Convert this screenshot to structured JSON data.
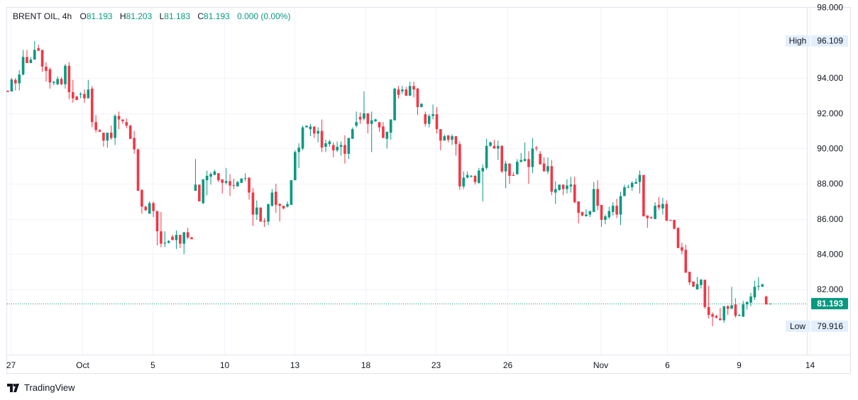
{
  "legend": {
    "symbol": "BRENT OIL, 4h",
    "o_label": "O",
    "o": "81.193",
    "h_label": "H",
    "h": "81.203",
    "l_label": "L",
    "l": "81.183",
    "c_label": "C",
    "c": "81.193",
    "change": "0.000 (0.00%)"
  },
  "logo": {
    "text": "TradingView"
  },
  "colors": {
    "up": "#089981",
    "down": "#f23645",
    "grid": "#f0f3fa",
    "badge": "#e3effd"
  },
  "chart_data": {
    "type": "candlestick",
    "title": "BRENT OIL, 4h",
    "ylim": [
      78.3,
      98.03
    ],
    "y_ticks": [
      "98.000",
      "94.000",
      "92.000",
      "90.000",
      "88.000",
      "86.000",
      "84.000",
      "82.000"
    ],
    "y_tick_values": [
      98,
      94,
      92,
      90,
      88,
      86,
      84,
      82
    ],
    "x_ticks": [
      {
        "label": "27",
        "index": 0.8
      },
      {
        "label": "Oct",
        "index": 19.4
      },
      {
        "label": "5",
        "index": 37.8
      },
      {
        "label": "10",
        "index": 56.5
      },
      {
        "label": "13",
        "index": 74.9
      },
      {
        "label": "18",
        "index": 93.3
      },
      {
        "label": "23",
        "index": 111.8
      },
      {
        "label": "26",
        "index": 130.4
      },
      {
        "label": "Nov",
        "index": 154.7
      },
      {
        "label": "6",
        "index": 172.2
      },
      {
        "label": "9",
        "index": 190.8
      },
      {
        "label": "14",
        "index": 209.3
      }
    ],
    "high": {
      "label": "High",
      "value": 96.109,
      "text": "96.109"
    },
    "low": {
      "label": "Low",
      "value": 79.916,
      "text": "79.916"
    },
    "last": {
      "value": 81.193,
      "text": "81.193"
    },
    "ohlc": [
      [
        93.28,
        93.3,
        93.2,
        93.22
      ],
      [
        93.24,
        94.0,
        93.24,
        93.92
      ],
      [
        93.9,
        94.0,
        93.3,
        93.7
      ],
      [
        93.7,
        94.45,
        93.3,
        94.2
      ],
      [
        94.2,
        95.6,
        94.15,
        95.2
      ],
      [
        95.2,
        95.6,
        94.85,
        94.85
      ],
      [
        94.85,
        95.2,
        94.85,
        95.05
      ],
      [
        95.05,
        96.109,
        95.05,
        95.6
      ],
      [
        95.7,
        95.9,
        95.55,
        95.55
      ],
      [
        95.6,
        95.6,
        94.35,
        94.65
      ],
      [
        94.65,
        94.9,
        93.8,
        94.4
      ],
      [
        94.5,
        94.6,
        93.4,
        93.75
      ],
      [
        93.72,
        93.85,
        93.6,
        93.78
      ],
      [
        93.65,
        94.1,
        93.6,
        93.95
      ],
      [
        93.95,
        94.05,
        93.6,
        93.65
      ],
      [
        93.65,
        94.8,
        93.4,
        94.7
      ],
      [
        94.7,
        94.9,
        92.8,
        93.2
      ],
      [
        93.2,
        93.9,
        92.6,
        92.85
      ],
      [
        92.95,
        93.0,
        92.75,
        92.75
      ],
      [
        93.05,
        93.2,
        92.85,
        93.1
      ],
      [
        93.1,
        93.35,
        92.6,
        92.85
      ],
      [
        92.85,
        93.9,
        92.85,
        93.35
      ],
      [
        93.4,
        93.55,
        91.2,
        91.5
      ],
      [
        91.5,
        91.9,
        90.9,
        91.05
      ],
      [
        91.05,
        91.1,
        90.95,
        90.95
      ],
      [
        90.9,
        90.9,
        90.1,
        90.45
      ],
      [
        90.45,
        90.9,
        90.05,
        90.9
      ],
      [
        90.9,
        91.3,
        90.5,
        90.6
      ],
      [
        90.6,
        91.95,
        90.2,
        91.85
      ],
      [
        91.85,
        92.1,
        91.1,
        91.65
      ],
      [
        91.65,
        91.65,
        91.4,
        91.55
      ],
      [
        91.5,
        91.7,
        91.15,
        91.3
      ],
      [
        91.3,
        91.35,
        90.55,
        90.55
      ],
      [
        90.6,
        91.0,
        89.7,
        89.95
      ],
      [
        89.95,
        90.0,
        87.6,
        87.6
      ],
      [
        87.65,
        87.7,
        86.3,
        86.7
      ],
      [
        86.7,
        86.75,
        86.45,
        86.5
      ],
      [
        86.3,
        87.0,
        86.3,
        86.9
      ],
      [
        86.9,
        87.0,
        86.1,
        86.45
      ],
      [
        86.45,
        86.45,
        84.5,
        85.3
      ],
      [
        85.3,
        86.4,
        84.4,
        84.6
      ],
      [
        84.6,
        85.3,
        84.4,
        84.65
      ],
      [
        84.65,
        84.8,
        84.6,
        84.75
      ],
      [
        85.0,
        85.1,
        84.8,
        84.8
      ],
      [
        84.8,
        85.35,
        84.3,
        85.1
      ],
      [
        85.1,
        85.1,
        84.35,
        84.6
      ],
      [
        84.6,
        85.25,
        84.0,
        85.25
      ],
      [
        85.25,
        85.5,
        84.85,
        84.95
      ],
      [
        84.95,
        85.0,
        84.85,
        84.85
      ],
      [
        87.6,
        89.4,
        87.6,
        87.95
      ],
      [
        87.95,
        87.95,
        87.0,
        87.0
      ],
      [
        86.9,
        88.25,
        86.85,
        88.25
      ],
      [
        88.2,
        88.75,
        87.35,
        88.45
      ],
      [
        88.4,
        88.65,
        87.95,
        88.55
      ],
      [
        88.5,
        88.8,
        88.5,
        88.7
      ],
      [
        88.6,
        88.6,
        88.1,
        88.2
      ],
      [
        88.25,
        88.25,
        87.45,
        88.05
      ],
      [
        88.05,
        88.9,
        87.95,
        88.15
      ],
      [
        88.15,
        88.55,
        87.3,
        87.9
      ],
      [
        87.92,
        88.3,
        87.7,
        87.88
      ],
      [
        87.85,
        88.15,
        87.85,
        88.1
      ],
      [
        88.05,
        88.3,
        88.05,
        88.3
      ],
      [
        88.28,
        88.6,
        88.15,
        88.32
      ],
      [
        88.35,
        88.35,
        87.1,
        87.5
      ],
      [
        87.5,
        87.75,
        85.6,
        86.25
      ],
      [
        86.25,
        87.05,
        85.95,
        86.65
      ],
      [
        86.65,
        86.65,
        85.85,
        85.85
      ],
      [
        85.9,
        86.05,
        85.55,
        85.85
      ],
      [
        85.85,
        86.85,
        85.65,
        86.85
      ],
      [
        86.75,
        87.7,
        86.7,
        87.5
      ],
      [
        87.55,
        88.0,
        86.35,
        86.8
      ],
      [
        86.85,
        86.9,
        85.85,
        86.75
      ],
      [
        86.75,
        86.75,
        86.55,
        86.6
      ],
      [
        86.7,
        87.0,
        86.65,
        86.85
      ],
      [
        86.8,
        88.2,
        86.8,
        88.2
      ],
      [
        88.2,
        89.9,
        88.2,
        89.8
      ],
      [
        89.8,
        90.3,
        88.9,
        90.05
      ],
      [
        90.0,
        91.3,
        89.9,
        91.2
      ],
      [
        91.2,
        91.3,
        91.2,
        91.3
      ],
      [
        91.1,
        91.4,
        90.7,
        91.25
      ],
      [
        91.25,
        91.25,
        90.6,
        90.85
      ],
      [
        90.85,
        91.2,
        90.35,
        91.0
      ],
      [
        91.0,
        91.65,
        89.8,
        90.05
      ],
      [
        90.1,
        90.5,
        89.8,
        90.3
      ],
      [
        90.25,
        90.5,
        90.1,
        90.4
      ],
      [
        90.2,
        90.35,
        89.5,
        89.9
      ],
      [
        89.9,
        90.4,
        89.8,
        90.1
      ],
      [
        90.1,
        90.4,
        89.6,
        90.2
      ],
      [
        90.2,
        90.75,
        89.15,
        89.7
      ],
      [
        89.7,
        90.6,
        89.4,
        90.6
      ],
      [
        90.55,
        91.2,
        90.55,
        91.1
      ],
      [
        91.3,
        92.1,
        91.2,
        91.5
      ],
      [
        91.8,
        92.05,
        91.4,
        91.65
      ],
      [
        91.7,
        93.25,
        91.6,
        92.0
      ],
      [
        92.0,
        92.0,
        90.85,
        91.4
      ],
      [
        91.4,
        92.1,
        89.8,
        91.6
      ],
      [
        91.55,
        91.7,
        91.5,
        91.65
      ],
      [
        91.5,
        91.5,
        90.95,
        91.2
      ],
      [
        91.25,
        91.5,
        90.6,
        90.6
      ],
      [
        90.55,
        90.95,
        90.0,
        90.95
      ],
      [
        90.9,
        91.65,
        90.5,
        91.65
      ],
      [
        91.6,
        93.45,
        91.6,
        93.4
      ],
      [
        93.35,
        93.55,
        92.85,
        93.05
      ],
      [
        93.25,
        93.55,
        93.1,
        93.35
      ],
      [
        93.35,
        93.5,
        93.0,
        93.0
      ],
      [
        93.0,
        93.8,
        93.0,
        93.55
      ],
      [
        93.55,
        93.8,
        92.9,
        93.35
      ],
      [
        93.4,
        93.45,
        91.9,
        92.35
      ],
      [
        92.35,
        92.55,
        92.35,
        92.55
      ],
      [
        91.95,
        92.1,
        91.25,
        91.4
      ],
      [
        91.4,
        91.95,
        91.2,
        91.85
      ],
      [
        91.85,
        92.5,
        91.65,
        91.95
      ],
      [
        91.95,
        92.35,
        90.85,
        91.1
      ],
      [
        91.1,
        91.1,
        89.9,
        90.45
      ],
      [
        90.45,
        90.8,
        90.45,
        90.7
      ],
      [
        90.75,
        90.75,
        90.35,
        90.5
      ],
      [
        90.5,
        90.8,
        90.2,
        90.7
      ],
      [
        90.7,
        90.7,
        89.6,
        90.25
      ],
      [
        90.25,
        90.4,
        87.65,
        87.85
      ],
      [
        87.85,
        88.7,
        87.7,
        88.35
      ],
      [
        88.35,
        88.7,
        88.3,
        88.5
      ],
      [
        88.4,
        88.5,
        88.35,
        88.45
      ],
      [
        88.45,
        88.5,
        87.95,
        88.1
      ],
      [
        88.05,
        88.9,
        88.0,
        88.75
      ],
      [
        88.7,
        89.1,
        87.0,
        88.9
      ],
      [
        88.9,
        90.55,
        88.8,
        90.15
      ],
      [
        90.15,
        90.4,
        90.1,
        90.35
      ],
      [
        90.15,
        90.5,
        90.0,
        90.0
      ],
      [
        90.0,
        90.45,
        89.35,
        90.15
      ],
      [
        90.15,
        90.2,
        88.6,
        88.7
      ],
      [
        88.7,
        89.3,
        87.75,
        89.15
      ],
      [
        89.15,
        89.15,
        88.0,
        88.45
      ],
      [
        88.5,
        88.65,
        88.45,
        88.45
      ],
      [
        88.55,
        89.4,
        88.5,
        89.25
      ],
      [
        89.25,
        89.75,
        89.2,
        89.35
      ],
      [
        89.3,
        90.35,
        89.25,
        89.4
      ],
      [
        89.4,
        89.85,
        88.0,
        88.95
      ],
      [
        88.95,
        90.6,
        88.6,
        90.0
      ],
      [
        90.05,
        90.15,
        89.85,
        90.0
      ],
      [
        89.7,
        89.85,
        89.1,
        89.1
      ],
      [
        89.15,
        89.5,
        88.7,
        88.7
      ],
      [
        88.7,
        89.5,
        88.55,
        89.0
      ],
      [
        89.0,
        89.35,
        87.35,
        87.55
      ],
      [
        87.5,
        88.15,
        86.85,
        87.7
      ],
      [
        87.65,
        87.95,
        87.6,
        87.95
      ],
      [
        87.95,
        87.95,
        87.35,
        87.7
      ],
      [
        87.7,
        88.25,
        87.45,
        87.9
      ],
      [
        87.85,
        88.4,
        87.5,
        87.95
      ],
      [
        87.95,
        88.4,
        86.9,
        86.95
      ],
      [
        87.0,
        87.0,
        85.75,
        86.35
      ],
      [
        86.4,
        86.4,
        86.15,
        86.2
      ],
      [
        86.15,
        86.55,
        86.15,
        86.25
      ],
      [
        86.25,
        86.45,
        86.1,
        86.45
      ],
      [
        86.4,
        88.1,
        86.4,
        87.7
      ],
      [
        87.7,
        88.2,
        86.5,
        86.75
      ],
      [
        86.8,
        86.8,
        85.55,
        85.95
      ],
      [
        85.95,
        86.25,
        85.7,
        86.15
      ],
      [
        86.1,
        86.7,
        86.0,
        86.45
      ],
      [
        86.4,
        86.95,
        86.2,
        86.75
      ],
      [
        86.75,
        87.15,
        86.05,
        86.25
      ],
      [
        86.25,
        87.55,
        85.65,
        87.3
      ],
      [
        87.3,
        87.95,
        87.3,
        87.8
      ],
      [
        87.78,
        87.95,
        87.75,
        87.82
      ],
      [
        87.8,
        88.15,
        87.6,
        88.05
      ],
      [
        88.0,
        88.3,
        88.0,
        88.1
      ],
      [
        88.1,
        88.75,
        87.45,
        88.5
      ],
      [
        88.5,
        88.5,
        86.15,
        86.15
      ],
      [
        86.2,
        86.2,
        85.5,
        86.05
      ],
      [
        86.1,
        86.15,
        86.0,
        86.05
      ],
      [
        86.0,
        86.95,
        86.0,
        86.75
      ],
      [
        86.8,
        87.25,
        86.5,
        86.65
      ],
      [
        86.6,
        87.2,
        86.25,
        86.85
      ],
      [
        86.85,
        87.05,
        85.9,
        85.9
      ],
      [
        85.95,
        85.95,
        85.9,
        85.9
      ],
      [
        85.95,
        85.95,
        85.4,
        85.45
      ],
      [
        85.5,
        85.5,
        84.35,
        84.35
      ],
      [
        84.4,
        84.65,
        84.0,
        84.2
      ],
      [
        84.25,
        84.55,
        82.95,
        82.95
      ],
      [
        83.0,
        83.0,
        82.25,
        82.4
      ],
      [
        82.45,
        82.45,
        82.15,
        82.15
      ],
      [
        82.0,
        82.7,
        82.0,
        82.3
      ],
      [
        82.25,
        82.6,
        82.05,
        82.55
      ],
      [
        82.55,
        82.55,
        80.9,
        81.0
      ],
      [
        81.0,
        82.2,
        80.35,
        80.55
      ],
      [
        80.6,
        80.7,
        79.916,
        80.45
      ],
      [
        80.5,
        80.55,
        80.35,
        80.4
      ],
      [
        80.35,
        80.95,
        80.25,
        80.25
      ],
      [
        80.25,
        81.05,
        80.1,
        81.05
      ],
      [
        81.05,
        81.1,
        80.55,
        80.9
      ],
      [
        80.9,
        82.15,
        80.9,
        81.1
      ],
      [
        81.15,
        81.5,
        80.4,
        80.5
      ],
      [
        80.5,
        80.6,
        80.5,
        80.55
      ],
      [
        80.45,
        81.35,
        80.45,
        81.15
      ],
      [
        81.15,
        81.3,
        80.85,
        81.3
      ],
      [
        81.25,
        81.8,
        81.05,
        81.6
      ],
      [
        81.55,
        82.5,
        81.4,
        82.15
      ],
      [
        82.15,
        82.7,
        81.95,
        82.2
      ],
      [
        82.15,
        82.3,
        82.15,
        82.3
      ],
      [
        81.6,
        81.65,
        81.15,
        81.15
      ],
      [
        81.193,
        81.203,
        81.183,
        81.193
      ]
    ]
  }
}
